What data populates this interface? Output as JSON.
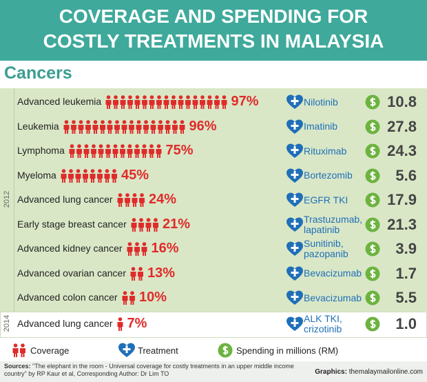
{
  "header": {
    "title": "COVERAGE AND SPENDING FOR COSTLY TREATMENTS IN MALAYSIA"
  },
  "section_title": "Cancers",
  "sections": [
    {
      "year": "2012",
      "rows": [
        {
          "cancer": "Advanced leukemia",
          "coverage": 97,
          "coverage_label": "97%",
          "treatment": "Nilotinib",
          "spending": "10.8"
        },
        {
          "cancer": "Leukemia",
          "coverage": 96,
          "coverage_label": "96%",
          "treatment": "Imatinib",
          "spending": "27.8"
        },
        {
          "cancer": "Lymphoma",
          "coverage": 75,
          "coverage_label": "75%",
          "treatment": "Rituximab",
          "spending": "24.3"
        },
        {
          "cancer": "Myeloma",
          "coverage": 45,
          "coverage_label": "45%",
          "treatment": "Bortezomib",
          "spending": "5.6"
        },
        {
          "cancer": "Advanced lung cancer",
          "coverage": 24,
          "coverage_label": "24%",
          "treatment": "EGFR TKI",
          "spending": "17.9"
        },
        {
          "cancer": "Early stage breast cancer",
          "coverage": 21,
          "coverage_label": "21%",
          "treatment": "Trastuzumab, lapatinib",
          "spending": "21.3"
        },
        {
          "cancer": "Advanced kidney cancer",
          "coverage": 16,
          "coverage_label": "16%",
          "treatment": "Sunitinib, pazopanib",
          "spending": "3.9"
        },
        {
          "cancer": "Advanced ovarian cancer",
          "coverage": 13,
          "coverage_label": "13%",
          "treatment": "Bevacizumab",
          "spending": "1.7"
        },
        {
          "cancer": "Advanced colon cancer",
          "coverage": 10,
          "coverage_label": "10%",
          "treatment": "Bevacizumab",
          "spending": "5.5"
        }
      ]
    },
    {
      "year": "2014",
      "rows": [
        {
          "cancer": "Advanced lung cancer",
          "coverage": 7,
          "coverage_label": "7%",
          "treatment": "ALK TKI, crizotinib",
          "spending": "1.0"
        }
      ]
    }
  ],
  "legend": {
    "coverage": "Coverage",
    "treatment": "Treatment",
    "spending": "Spending in millions (RM)"
  },
  "footer": {
    "sources_label": "Sources:",
    "sources": "\"The elephant in the room - Universal coverage for costly treatments in an upper middle income country\" by RP Kaur et al, Corresponding Author: Dr Lim TO",
    "credit_label": "Graphics:",
    "credit": "themalaymailonline.com"
  }
}
